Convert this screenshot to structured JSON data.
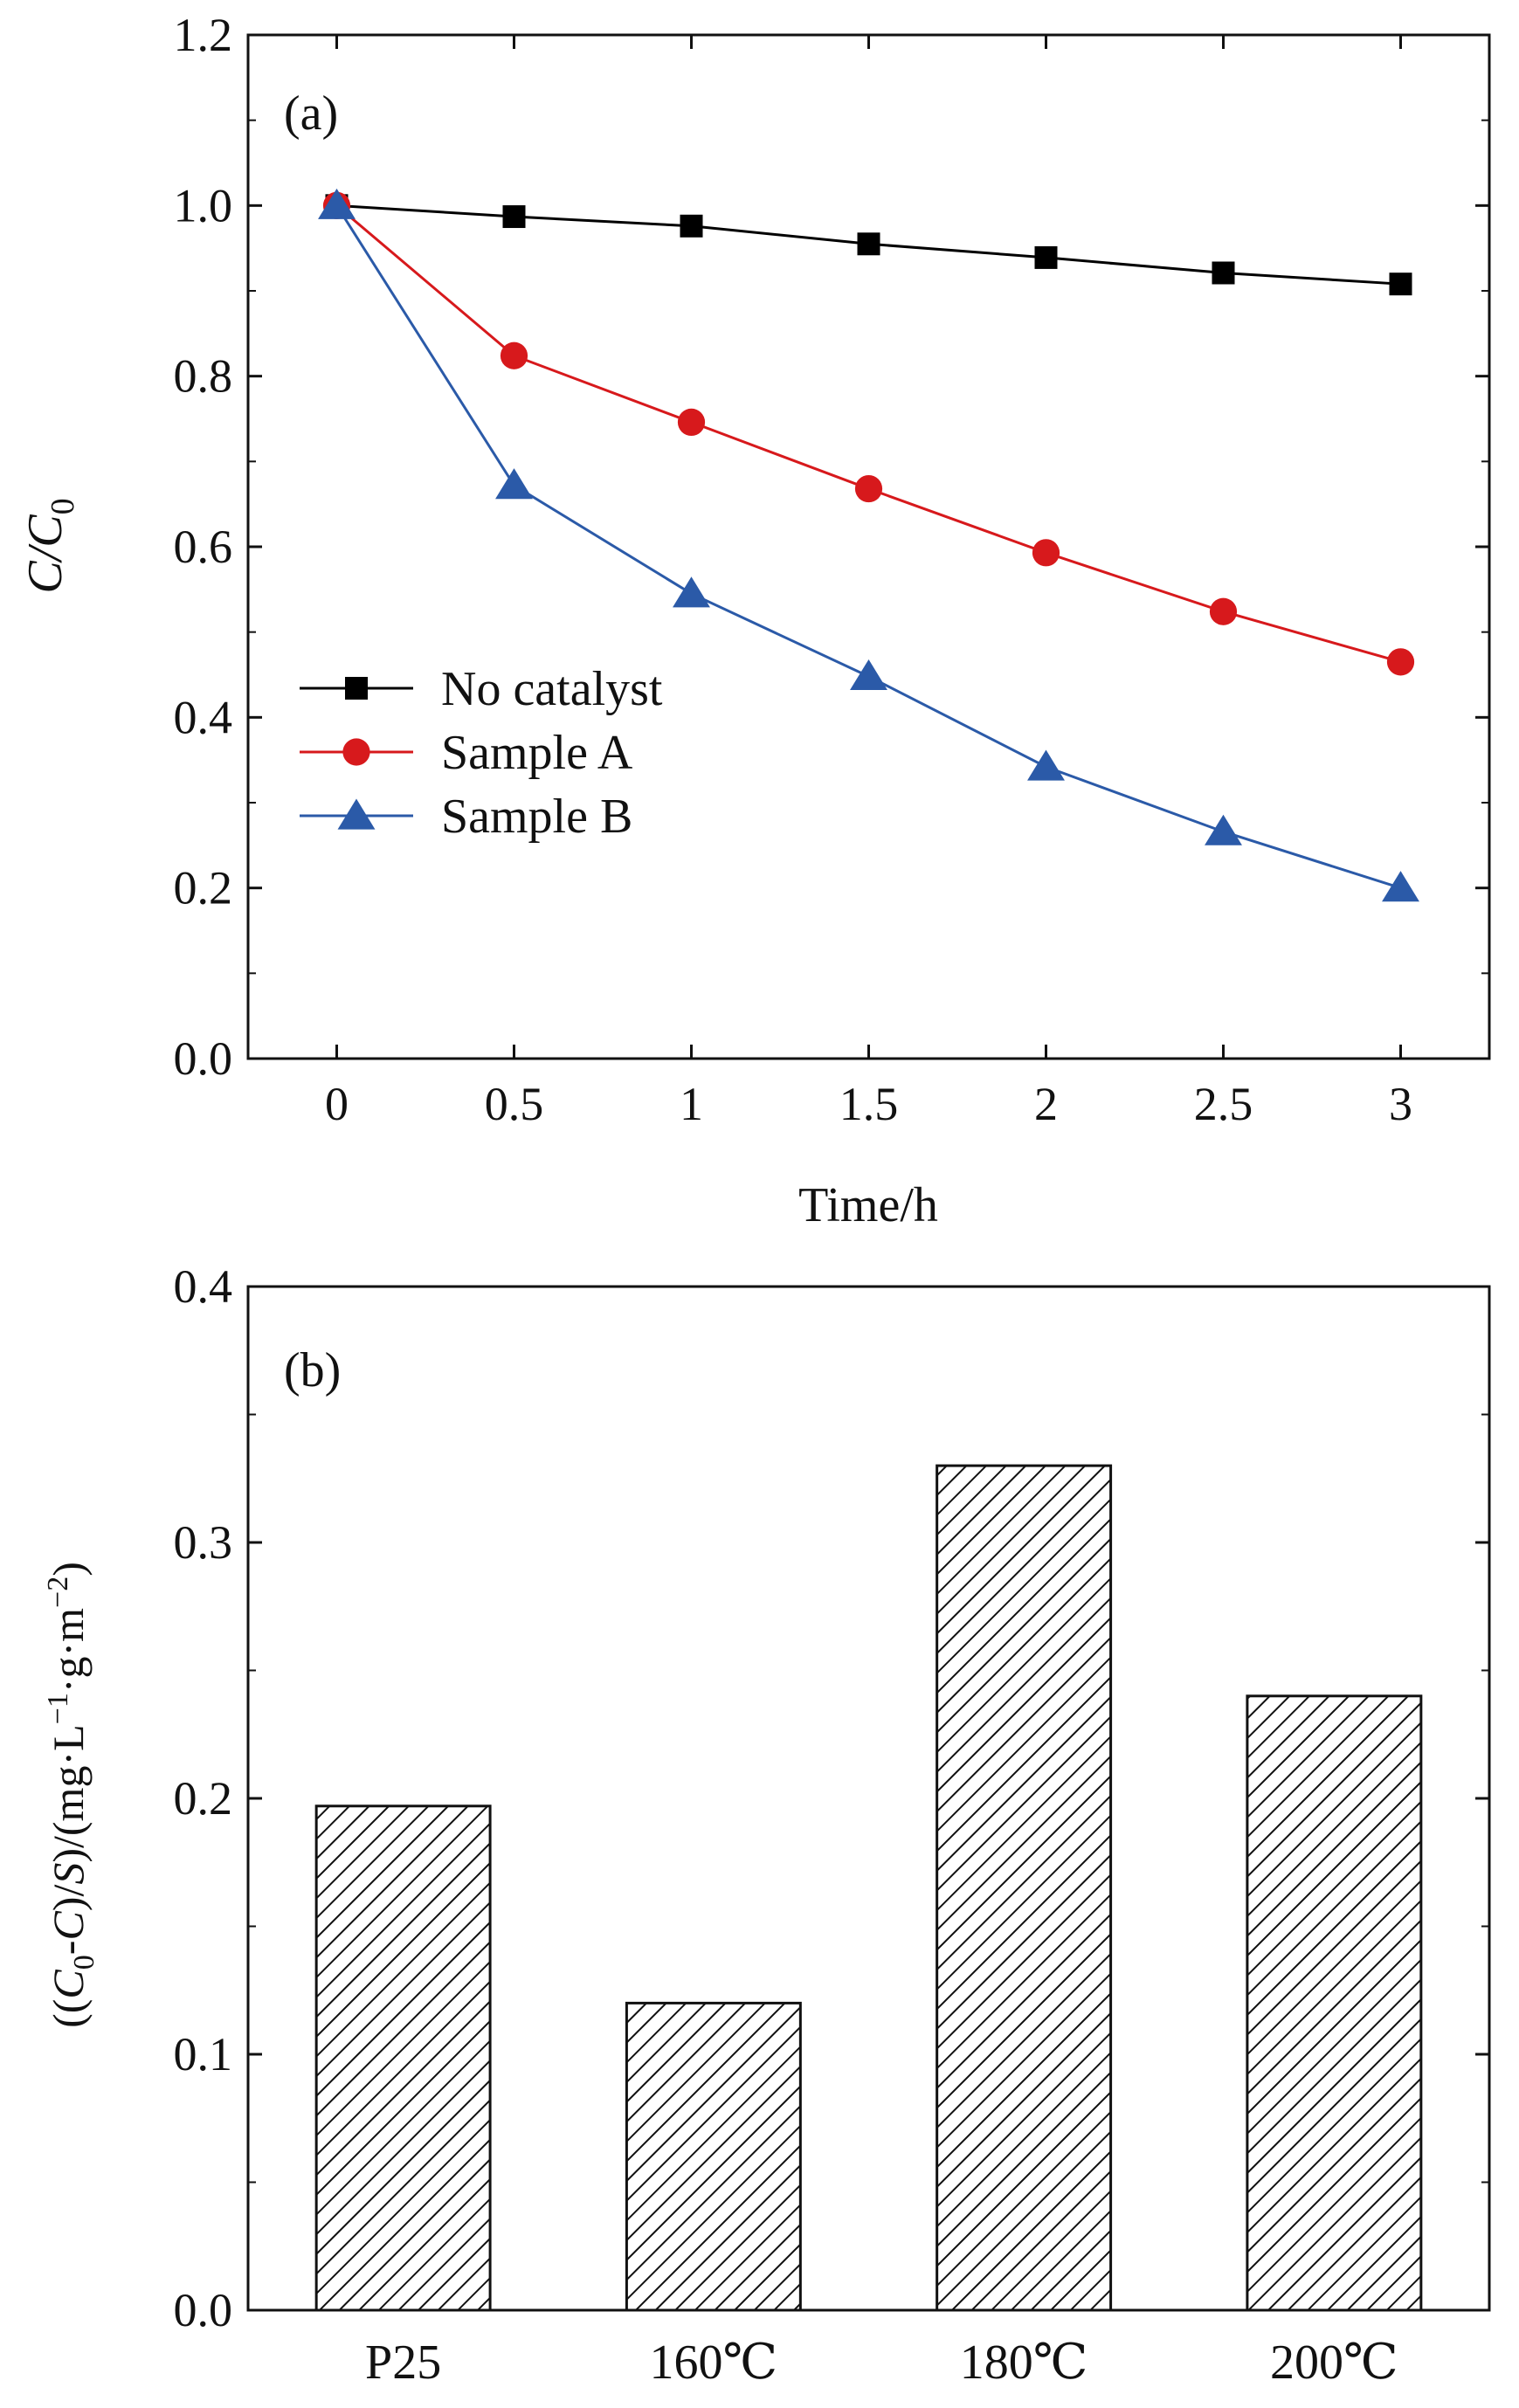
{
  "chart_data": [
    {
      "panel": "(a)",
      "type": "line",
      "title": "",
      "xlabel": "Time/h",
      "ylabel": "C/C",
      "ylabel_subscript": "0",
      "x": [
        0,
        0.5,
        1,
        1.5,
        2,
        2.5,
        3
      ],
      "x_tick_labels": [
        "0",
        "0.5",
        "1",
        "1.5",
        "2",
        "2.5",
        "3"
      ],
      "xlim": [
        -0.25,
        3.25
      ],
      "ylim": [
        0.0,
        1.2
      ],
      "y_ticks": [
        0.0,
        0.2,
        0.4,
        0.6,
        0.8,
        1.0,
        1.2
      ],
      "y_tick_labels": [
        "0.0",
        "0.2",
        "0.4",
        "0.6",
        "0.8",
        "1.0",
        "1.2"
      ],
      "grid": false,
      "legend_position": "middle-left",
      "series": [
        {
          "name": "No catalyst",
          "marker": "square",
          "color": "#000000",
          "values": [
            1.0,
            0.987,
            0.976,
            0.955,
            0.939,
            0.921,
            0.908
          ]
        },
        {
          "name": "Sample A",
          "marker": "circle",
          "color": "#d7191c",
          "values": [
            1.0,
            0.824,
            0.746,
            0.668,
            0.593,
            0.524,
            0.465
          ]
        },
        {
          "name": "Sample B",
          "marker": "triangle",
          "color": "#2b5aa8",
          "values": [
            1.0,
            0.672,
            0.545,
            0.448,
            0.342,
            0.266,
            0.2
          ]
        }
      ]
    },
    {
      "panel": "(b)",
      "type": "bar",
      "title": "",
      "xlabel": "",
      "ylabel_parts": [
        "((",
        "C",
        "0",
        "-",
        "C",
        ")/",
        "S",
        ")/(mg·L",
        "−1",
        "·g·m",
        "−2",
        ")"
      ],
      "categories": [
        "P25",
        "160℃",
        "180℃",
        "200℃"
      ],
      "values": [
        0.197,
        0.12,
        0.33,
        0.24
      ],
      "ylim": [
        0.0,
        0.4
      ],
      "y_ticks": [
        0.0,
        0.1,
        0.2,
        0.3,
        0.4
      ],
      "y_tick_labels": [
        "0.0",
        "0.1",
        "0.2",
        "0.3",
        "0.4"
      ],
      "grid": false,
      "bar_fill": "diagonal-hatch"
    }
  ]
}
